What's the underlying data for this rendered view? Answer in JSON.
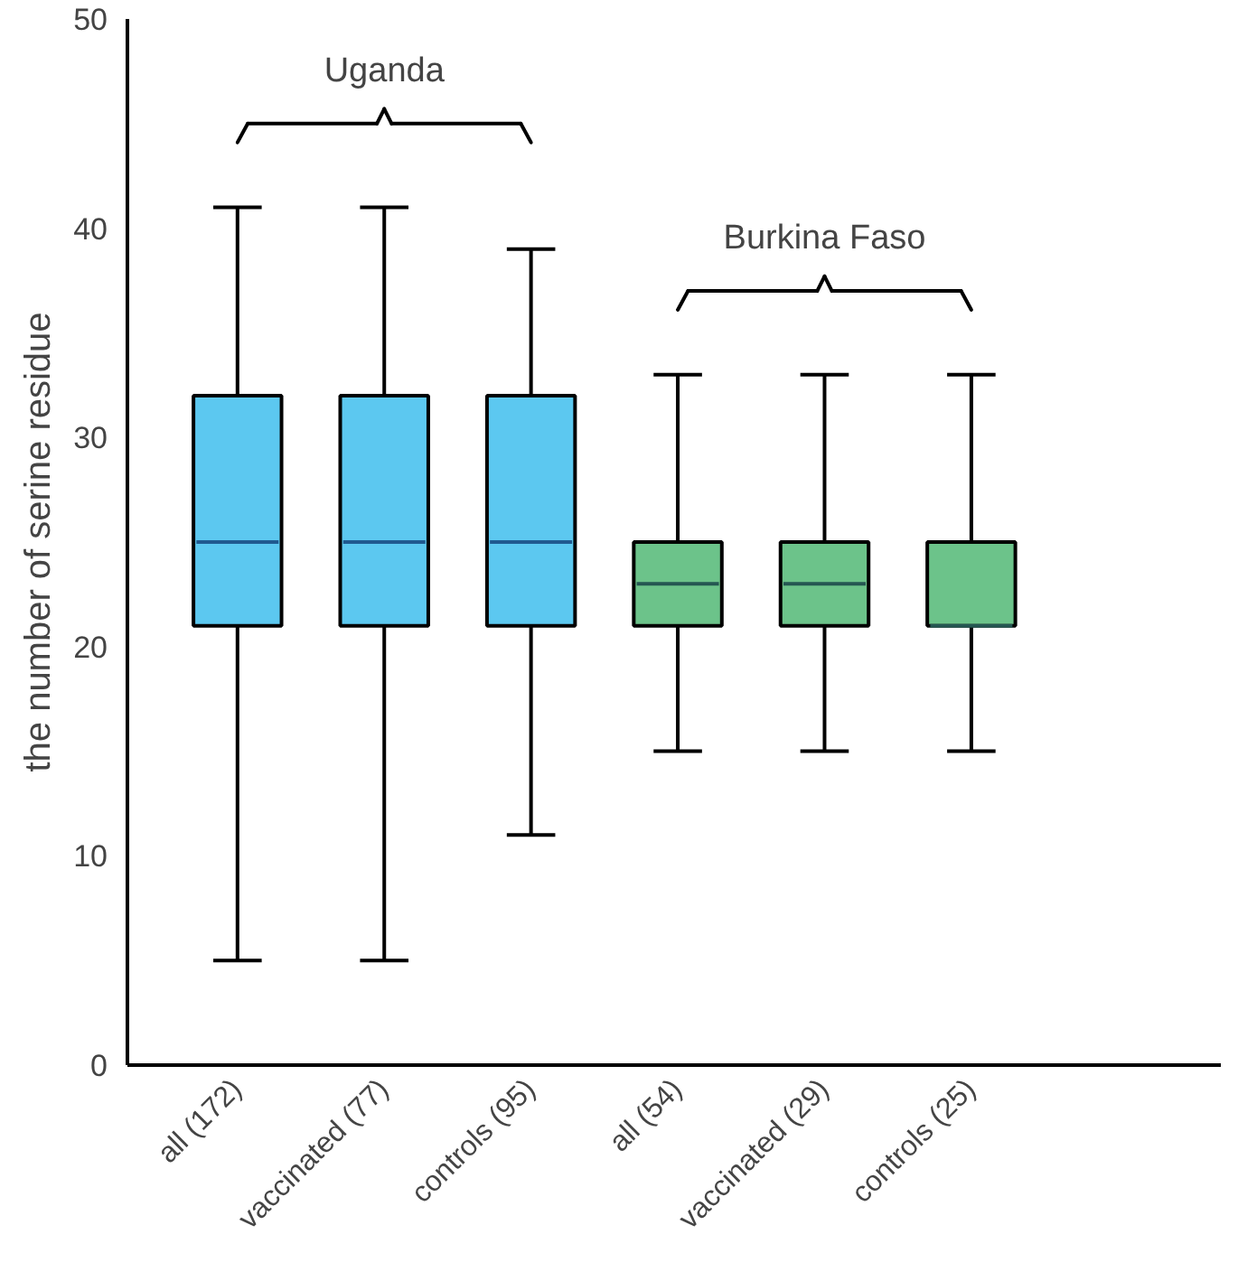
{
  "chart_data": {
    "type": "box",
    "ylabel": "the number of serine residue",
    "categories": [
      "all (172)",
      "vaccinated (77)",
      "controls (95)",
      "all (54)",
      "vaccinated (29)",
      "controls (25)"
    ],
    "boxes": [
      {
        "low": 5,
        "q1": 21,
        "median": 25,
        "q3": 32,
        "high": 41
      },
      {
        "low": 5,
        "q1": 21,
        "median": 25,
        "q3": 32,
        "high": 41
      },
      {
        "low": 11,
        "q1": 21,
        "median": 25,
        "q3": 32,
        "high": 39
      },
      {
        "low": 15,
        "q1": 21,
        "median": 23,
        "q3": 25,
        "high": 33
      },
      {
        "low": 15,
        "q1": 21,
        "median": 23,
        "q3": 25,
        "high": 33
      },
      {
        "low": 15,
        "q1": 21,
        "median": 21,
        "q3": 25,
        "high": 33
      }
    ],
    "colors": [
      "#5cc8f0",
      "#5cc8f0",
      "#5cc8f0",
      "#6cc38a",
      "#6cc38a",
      "#6cc38a"
    ],
    "ylim": [
      0,
      50
    ],
    "yticks": [
      0,
      10,
      20,
      30,
      40,
      50
    ],
    "grid": false,
    "annotations": [
      "Uganda",
      "Burkina Faso"
    ]
  }
}
